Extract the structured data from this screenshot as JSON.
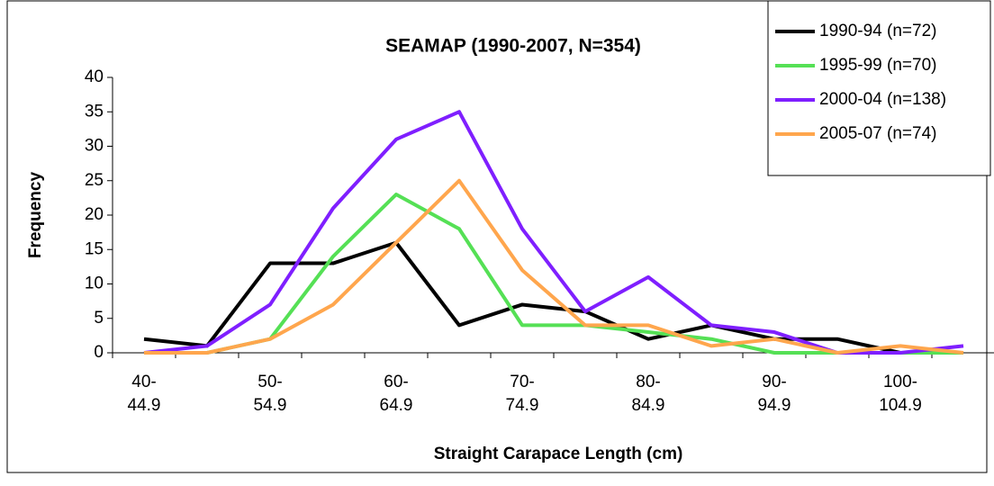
{
  "chart_data": {
    "type": "line",
    "title": "SEAMAP (1990-2007, N=354)",
    "x_label": "Straight Carapace Length (cm)",
    "y_label": "Frequency",
    "categories": [
      "40-\n44.9",
      null,
      "50-\n54.9",
      null,
      "60-\n64.9",
      null,
      "70-\n74.9",
      null,
      "80-\n84.9",
      null,
      "90-\n94.9",
      null,
      "100-\n104.9",
      null
    ],
    "series": [
      {
        "name": "1990-94 (n=72)",
        "color": "#000000",
        "values": [
          2,
          1,
          13,
          13,
          16,
          4,
          7,
          6,
          2,
          4,
          2,
          2,
          0,
          0
        ]
      },
      {
        "name": "1995-99 (n=70)",
        "color": "#55e055",
        "values": [
          0,
          0,
          2,
          14,
          23,
          18,
          4,
          4,
          3,
          2,
          0,
          0,
          0,
          0
        ]
      },
      {
        "name": "2000-04 (n=138)",
        "color": "#7f1fff",
        "values": [
          0,
          1,
          7,
          21,
          31,
          35,
          18,
          6,
          11,
          4,
          3,
          0,
          0,
          1
        ]
      },
      {
        "name": "2005-07 (n=74)",
        "color": "#ffa64d",
        "values": [
          0,
          0,
          2,
          7,
          16,
          25,
          12,
          4,
          4,
          1,
          2,
          0,
          1,
          0
        ]
      }
    ],
    "ylim": [
      0,
      40
    ],
    "yticks": [
      0,
      5,
      10,
      15,
      20,
      25,
      30,
      35,
      40
    ],
    "grid": false,
    "legend": "top-right"
  }
}
